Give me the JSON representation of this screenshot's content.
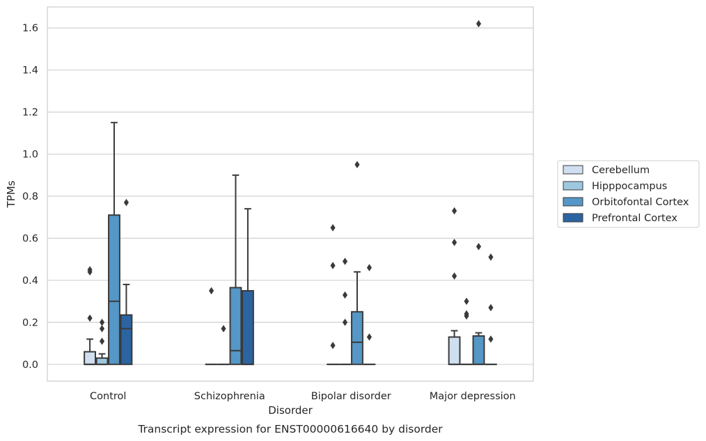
{
  "chart_data": {
    "type": "box",
    "title": "",
    "caption": "Transcript expression for ENST00000616640 by disorder",
    "xlabel": "Disorder",
    "ylabel": "TPMs",
    "ylim": [
      -0.08,
      1.7
    ],
    "yticks": [
      "0.0",
      "0.2",
      "0.4",
      "0.6",
      "0.8",
      "1.0",
      "1.2",
      "1.4",
      "1.6"
    ],
    "grid": true,
    "legend_position": "right",
    "categories": [
      "Control",
      "Schizophrenia",
      "Bipolar disorder",
      "Major depression"
    ],
    "series": [
      {
        "name": "Cerebellum",
        "color": "#cfdff0",
        "boxes": [
          {
            "q1": 0.0,
            "median": 0.0,
            "q3": 0.06,
            "wlo": 0.0,
            "whi": 0.12,
            "outliers": [
              0.22,
              0.44,
              0.45
            ]
          },
          {
            "q1": 0.0,
            "median": 0.0,
            "q3": 0.0,
            "wlo": 0.0,
            "whi": 0.0,
            "outliers": [
              0.35
            ]
          },
          {
            "q1": 0.0,
            "median": 0.0,
            "q3": 0.0,
            "wlo": 0.0,
            "whi": 0.0,
            "outliers": [
              0.09,
              0.47,
              0.65
            ]
          },
          {
            "q1": 0.0,
            "median": 0.0,
            "q3": 0.13,
            "wlo": 0.0,
            "whi": 0.16,
            "outliers": [
              0.42,
              0.58,
              0.73
            ]
          }
        ]
      },
      {
        "name": "Hipppocampus",
        "color": "#9ec7e0",
        "boxes": [
          {
            "q1": 0.0,
            "median": 0.0,
            "q3": 0.03,
            "wlo": 0.0,
            "whi": 0.05,
            "outliers": [
              0.11,
              0.17,
              0.2
            ]
          },
          {
            "q1": 0.0,
            "median": 0.0,
            "q3": 0.0,
            "wlo": 0.0,
            "whi": 0.0,
            "outliers": [
              0.17
            ]
          },
          {
            "q1": 0.0,
            "median": 0.0,
            "q3": 0.0,
            "wlo": 0.0,
            "whi": 0.0,
            "outliers": [
              0.2,
              0.33,
              0.49
            ]
          },
          {
            "q1": 0.0,
            "median": 0.0,
            "q3": 0.0,
            "wlo": 0.0,
            "whi": 0.0,
            "outliers": [
              0.23,
              0.24,
              0.3
            ]
          }
        ]
      },
      {
        "name": "Orbitofontal Cortex",
        "color": "#5597c6",
        "boxes": [
          {
            "q1": 0.0,
            "median": 0.3,
            "q3": 0.71,
            "wlo": 0.0,
            "whi": 1.15,
            "outliers": []
          },
          {
            "q1": 0.0,
            "median": 0.065,
            "q3": 0.365,
            "wlo": 0.0,
            "whi": 0.9,
            "outliers": []
          },
          {
            "q1": 0.0,
            "median": 0.105,
            "q3": 0.25,
            "wlo": 0.0,
            "whi": 0.44,
            "outliers": [
              0.95
            ]
          },
          {
            "q1": 0.0,
            "median": 0.0,
            "q3": 0.135,
            "wlo": 0.0,
            "whi": 0.15,
            "outliers": [
              0.56,
              1.62
            ]
          }
        ]
      },
      {
        "name": "Prefrontal Cortex",
        "color": "#2c64a1",
        "boxes": [
          {
            "q1": 0.0,
            "median": 0.17,
            "q3": 0.235,
            "wlo": 0.0,
            "whi": 0.38,
            "outliers": [
              0.77
            ]
          },
          {
            "q1": 0.0,
            "median": 0.0,
            "q3": 0.35,
            "wlo": 0.0,
            "whi": 0.74,
            "outliers": []
          },
          {
            "q1": 0.0,
            "median": 0.0,
            "q3": 0.0,
            "wlo": 0.0,
            "whi": 0.0,
            "outliers": [
              0.13,
              0.46
            ]
          },
          {
            "q1": 0.0,
            "median": 0.0,
            "q3": 0.0,
            "wlo": 0.0,
            "whi": 0.0,
            "outliers": [
              0.12,
              0.27,
              0.51
            ]
          }
        ]
      }
    ]
  }
}
